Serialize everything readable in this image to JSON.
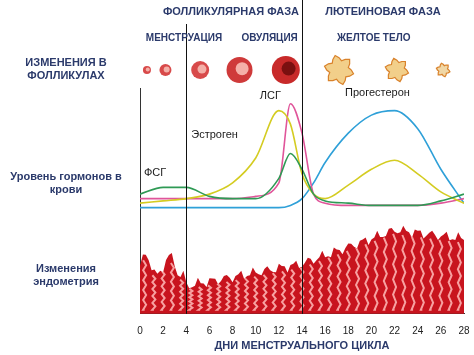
{
  "chart_data": {
    "type": "line",
    "phases": [
      "ФОЛЛИКУЛЯРНАЯ ФАЗА",
      "ЛЮТЕИНОВАЯ ФАЗА"
    ],
    "stages": [
      "МЕНСТРУАЦИЯ",
      "ОВУЛЯЦИЯ",
      "ЖЕЛТОЕ ТЕЛО"
    ],
    "row_labels": [
      "ИЗМЕНЕНИЯ В ФОЛЛИКУЛАХ",
      "Уровень гормонов в крови",
      "Изменения эндометрия"
    ],
    "x_label": "ДНИ МЕНСТРУАЛЬНОГО ЦИКЛА",
    "x": [
      0,
      2,
      4,
      6,
      8,
      10,
      12,
      13,
      14,
      15,
      16,
      18,
      20,
      22,
      24,
      26,
      28
    ],
    "series": [
      {
        "name": "ФСГ",
        "color": "#2f9a55",
        "values": [
          53,
          56,
          56,
          52,
          51,
          51,
          60,
          71,
          64,
          53,
          50,
          49,
          48,
          48,
          48,
          50,
          53
        ]
      },
      {
        "name": "Эстроген",
        "color": "#d4cc22",
        "values": [
          49,
          50,
          51,
          53,
          58,
          69,
          90,
          84,
          62,
          53,
          51,
          57,
          64,
          68,
          62,
          54,
          49
        ]
      },
      {
        "name": "ЛСГ",
        "color": "#e0559a",
        "values": [
          51,
          51,
          51,
          51,
          51,
          52,
          58,
          93,
          80,
          53,
          49,
          48,
          48,
          48,
          48,
          49,
          51
        ]
      },
      {
        "name": "Прогестерон",
        "color": "#2fa0d8",
        "values": [
          47,
          47,
          47,
          47,
          47,
          47,
          47,
          48,
          51,
          58,
          67,
          80,
          88,
          90,
          82,
          64,
          49
        ]
      }
    ],
    "phase_boundaries": [
      4,
      14
    ],
    "xlim": [
      0,
      28
    ],
    "xticks": [
      0,
      2,
      4,
      6,
      8,
      10,
      12,
      14,
      16,
      18,
      20,
      22,
      24,
      26,
      28
    ],
    "ylim": [
      0,
      100
    ],
    "tick_labels": "x",
    "grid": false,
    "legend": "none"
  }
}
